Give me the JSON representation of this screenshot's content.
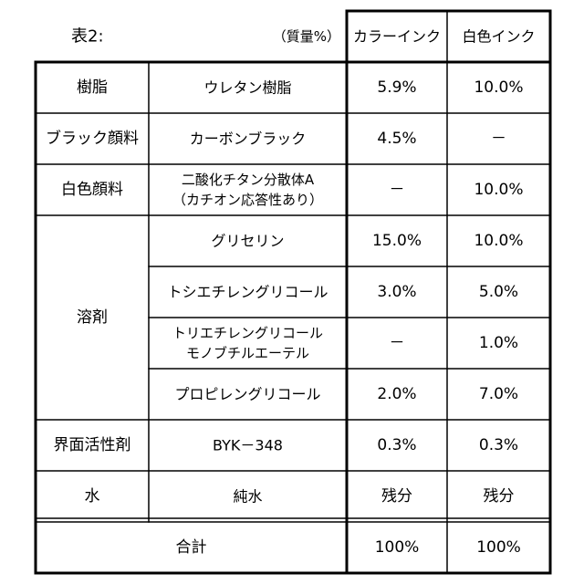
{
  "table": {
    "title": "表2:",
    "unit": "（質量%）",
    "headers": {
      "color_ink": "カラーインク",
      "white_ink": "白色インク"
    },
    "rows": [
      {
        "category": "樹脂",
        "component": "ウレタン樹脂",
        "color_ink": "5.9%",
        "white_ink": "10.0%"
      },
      {
        "category": "ブラック顔料",
        "component": "カーボンブラック",
        "color_ink": "4.5%",
        "white_ink": "－"
      },
      {
        "category": "白色顔料",
        "component": [
          "二酸化チタン分散体A",
          "（カチオン応答性あり）"
        ],
        "color_ink": "－",
        "white_ink": "10.0%"
      },
      {
        "category": "溶剤",
        "component": "グリセリン",
        "color_ink": "15.0%",
        "white_ink": "10.0%"
      },
      {
        "category": "",
        "component": "トシエチレングリコール",
        "color_ink": "3.0%",
        "white_ink": "5.0%"
      },
      {
        "category": "",
        "component": [
          "トリエチレングリコール",
          "モノブチルエーテル"
        ],
        "color_ink": "－",
        "white_ink": "1.0%"
      },
      {
        "category": "",
        "component": "プロピレングリコール",
        "color_ink": "2.0%",
        "white_ink": "7.0%"
      },
      {
        "category": "界面活性剤",
        "component": "BYK－348",
        "color_ink": "0.3%",
        "white_ink": "0.3%"
      },
      {
        "category": "水",
        "component": "純水",
        "color_ink": "残分",
        "white_ink": "残分"
      }
    ],
    "total": {
      "label": "合計",
      "color_ink": "100%",
      "white_ink": "100%"
    }
  }
}
